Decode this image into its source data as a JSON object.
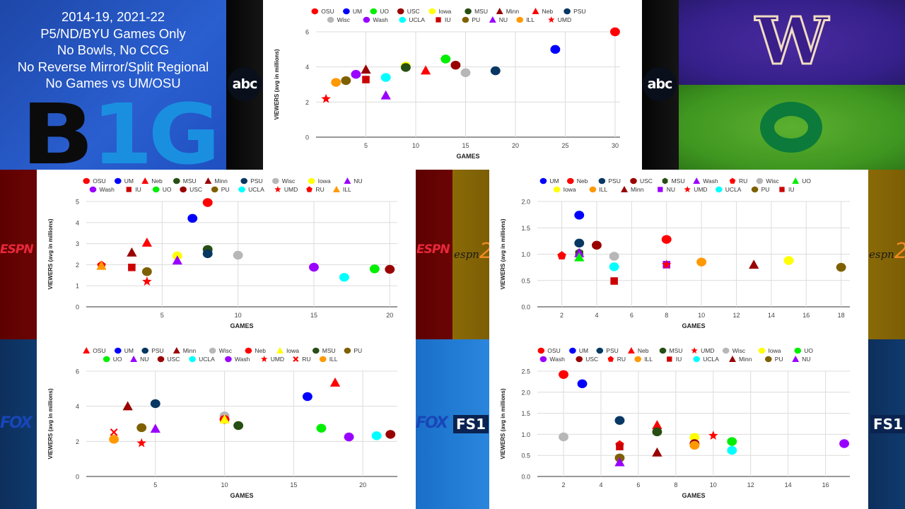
{
  "info_panel": {
    "lines": [
      "2014-19, 2021-22",
      "P5/ND/BYU Games Only",
      "No Bowls, No CCG",
      "No Reverse Mirror/Split Regional",
      "No Games vs UM/OSU"
    ],
    "logo_b": "B",
    "logo_1g": "1G"
  },
  "networks": {
    "abc": "abc",
    "espn": "ESPN",
    "espn2_text": "espn",
    "espn2_num": "2",
    "fox": "FOX",
    "fs1": "FS1"
  },
  "team_logos": {
    "washington": "W",
    "oregon": "O"
  },
  "colors": {
    "OSU": "#ff0000",
    "UM": "#0000ff",
    "UO": "#00ee00",
    "USC": "#990000",
    "Iowa": "#ffff00",
    "MSU": "#274e13",
    "Minn": "#990000",
    "Neb": "#ff0000",
    "PSU": "#073763",
    "Wisc": "#b7b7b7",
    "Wash": "#9900ff",
    "UCLA": "#00ffff",
    "IU": "#cc0000",
    "PU": "#7f6000",
    "NU": "#9900ff",
    "ILL": "#ff9900",
    "UMD": "#ff0000",
    "RU": "#ff0000"
  },
  "chart_data": [
    {
      "id": "abc",
      "network": "ABC",
      "type": "scatter",
      "title": "",
      "xlabel": "GAMES",
      "ylabel": "VIEWERS (avg in millions)",
      "xlim": [
        0,
        30.5
      ],
      "ylim": [
        0,
        6
      ],
      "xticks": [
        5,
        10,
        15,
        20,
        25,
        30
      ],
      "yticks": [
        0,
        2,
        4,
        6
      ],
      "ytick_labels": [
        "0",
        "2",
        "4",
        "6"
      ],
      "grid": true,
      "legend_position": "top",
      "legend_rows": [
        [
          "OSU",
          "UM",
          "UO",
          "USC",
          "Iowa",
          "MSU",
          "Minn",
          "Neb",
          "PSU"
        ],
        [
          "Wisc",
          "Wash",
          "UCLA",
          "IU",
          "PU",
          "NU",
          "ILL",
          "UMD"
        ]
      ],
      "series": [
        {
          "name": "OSU",
          "marker": "circle",
          "x": 30,
          "y": 6.0
        },
        {
          "name": "UM",
          "marker": "circle",
          "x": 24,
          "y": 5.0
        },
        {
          "name": "UO",
          "marker": "circle",
          "x": 13,
          "y": 4.45
        },
        {
          "name": "USC",
          "marker": "circle",
          "x": 14,
          "y": 4.1
        },
        {
          "name": "Iowa",
          "marker": "circle",
          "x": 9,
          "y": 4.05
        },
        {
          "name": "MSU",
          "marker": "circle",
          "x": 9,
          "y": 3.97
        },
        {
          "name": "Minn",
          "marker": "triangle",
          "x": 5,
          "y": 3.85
        },
        {
          "name": "Neb",
          "marker": "triangle",
          "x": 11,
          "y": 3.8
        },
        {
          "name": "PSU",
          "marker": "circle",
          "x": 18,
          "y": 3.78
        },
        {
          "name": "Wisc",
          "marker": "circle",
          "x": 15,
          "y": 3.67
        },
        {
          "name": "Wash",
          "marker": "circle",
          "x": 4,
          "y": 3.58
        },
        {
          "name": "UCLA",
          "marker": "circle",
          "x": 7,
          "y": 3.4
        },
        {
          "name": "IU",
          "marker": "square",
          "x": 5,
          "y": 3.28
        },
        {
          "name": "PU",
          "marker": "circle",
          "x": 3,
          "y": 3.22
        },
        {
          "name": "NU",
          "marker": "triangle",
          "x": 7,
          "y": 2.38
        },
        {
          "name": "ILL",
          "marker": "circle",
          "x": 2,
          "y": 3.12
        },
        {
          "name": "UMD",
          "marker": "star",
          "x": 1,
          "y": 2.18
        }
      ]
    },
    {
      "id": "espn",
      "network": "ESPN",
      "type": "scatter",
      "title": "",
      "xlabel": "GAMES",
      "ylabel": "VIEWERS (avg in millions)",
      "xlim": [
        0,
        20.5
      ],
      "ylim": [
        0,
        5
      ],
      "xticks": [
        5,
        10,
        15,
        20
      ],
      "yticks": [
        0,
        1,
        2,
        3,
        4,
        5
      ],
      "ytick_labels": [
        "0",
        "1",
        "2",
        "3",
        "4",
        "5"
      ],
      "grid": true,
      "legend_position": "top",
      "legend_rows": [
        [
          "OSU",
          "UM",
          "Neb",
          "MSU",
          "Minn",
          "PSU",
          "Wisc",
          "Iowa",
          "NU"
        ],
        [
          "Wash",
          "IU",
          "UO",
          "USC",
          "PU",
          "UCLA",
          "UMD",
          "RU",
          "ILL"
        ]
      ],
      "series": [
        {
          "name": "OSU",
          "marker": "circle",
          "x": 8,
          "y": 4.95
        },
        {
          "name": "UM",
          "marker": "circle",
          "x": 7,
          "y": 4.2
        },
        {
          "name": "Neb",
          "marker": "triangle",
          "x": 4,
          "y": 3.05
        },
        {
          "name": "MSU",
          "marker": "circle",
          "x": 8,
          "y": 2.72
        },
        {
          "name": "Minn",
          "marker": "triangle",
          "x": 3,
          "y": 2.58
        },
        {
          "name": "PSU",
          "marker": "circle",
          "x": 8,
          "y": 2.52
        },
        {
          "name": "Wisc",
          "marker": "circle",
          "x": 10,
          "y": 2.45
        },
        {
          "name": "Iowa",
          "marker": "circle",
          "x": 6,
          "y": 2.42
        },
        {
          "name": "NU",
          "marker": "triangle",
          "x": 6,
          "y": 2.2
        },
        {
          "name": "Wash",
          "marker": "circle",
          "x": 15,
          "y": 1.88
        },
        {
          "name": "IU",
          "marker": "square",
          "x": 3,
          "y": 1.87
        },
        {
          "name": "UO",
          "marker": "circle",
          "x": 19,
          "y": 1.8
        },
        {
          "name": "USC",
          "marker": "circle",
          "x": 20,
          "y": 1.78
        },
        {
          "name": "PU",
          "marker": "circle",
          "x": 4,
          "y": 1.67
        },
        {
          "name": "UCLA",
          "marker": "circle",
          "x": 17,
          "y": 1.4
        },
        {
          "name": "UMD",
          "marker": "star",
          "x": 4,
          "y": 1.2
        },
        {
          "name": "RU",
          "marker": "pentagon",
          "x": 1,
          "y": 1.97
        },
        {
          "name": "ILL",
          "marker": "triangle",
          "x": 1,
          "y": 1.95
        }
      ]
    },
    {
      "id": "espn2",
      "network": "ESPN2",
      "type": "scatter",
      "title": "",
      "xlabel": "GAMES",
      "ylabel": "VIEWERS (avg in millions)",
      "xlim": [
        0.6,
        18.5
      ],
      "ylim": [
        0,
        2.0
      ],
      "xticks": [
        2,
        4,
        6,
        8,
        10,
        12,
        14,
        16,
        18
      ],
      "yticks": [
        0,
        0.5,
        1.0,
        1.5,
        2.0
      ],
      "ytick_labels": [
        "0.0",
        "0.5",
        "1.0",
        "1.5",
        "2.0"
      ],
      "grid": true,
      "legend_position": "top",
      "legend_rows": [
        [
          "UM",
          "Neb",
          "PSU",
          "USC",
          "MSU",
          "Wash",
          "RU",
          "Wisc",
          "UO"
        ],
        [
          "Iowa",
          "ILL",
          "Minn",
          "NU",
          "UMD",
          "UCLA",
          "PU",
          "IU"
        ]
      ],
      "series": [
        {
          "name": "UM",
          "marker": "circle",
          "x": 3,
          "y": 1.74
        },
        {
          "name": "Neb",
          "marker": "circle",
          "x": 8,
          "y": 1.28
        },
        {
          "name": "PSU",
          "marker": "circle",
          "x": 3,
          "y": 1.21
        },
        {
          "name": "USC",
          "marker": "circle",
          "x": 4,
          "y": 1.17
        },
        {
          "name": "MSU",
          "marker": "hexagon",
          "x": 3,
          "y": 1.02
        },
        {
          "name": "Wash",
          "marker": "triangle",
          "x": 3,
          "y": 1.02
        },
        {
          "name": "RU",
          "marker": "pentagon",
          "x": 2,
          "y": 0.97
        },
        {
          "name": "Wisc",
          "marker": "circle",
          "x": 5,
          "y": 0.96
        },
        {
          "name": "UO",
          "marker": "triangle",
          "x": 3,
          "y": 0.94
        },
        {
          "name": "Iowa",
          "marker": "circle",
          "x": 15,
          "y": 0.88
        },
        {
          "name": "ILL",
          "marker": "circle",
          "x": 10,
          "y": 0.85
        },
        {
          "name": "Minn",
          "marker": "triangle",
          "x": 13,
          "y": 0.8
        },
        {
          "name": "NU",
          "marker": "square",
          "x": 8,
          "y": 0.8
        },
        {
          "name": "UMD",
          "marker": "star",
          "x": 8,
          "y": 0.8
        },
        {
          "name": "UCLA",
          "marker": "circle",
          "x": 5,
          "y": 0.76
        },
        {
          "name": "PU",
          "marker": "circle",
          "x": 18,
          "y": 0.75
        },
        {
          "name": "IU",
          "marker": "square",
          "x": 5,
          "y": 0.49
        }
      ]
    },
    {
      "id": "fox",
      "network": "FOX",
      "type": "scatter",
      "title": "",
      "xlabel": "GAMES",
      "ylabel": "VIEWERS (avg in millions)",
      "xlim": [
        0,
        22.5
      ],
      "ylim": [
        0,
        6
      ],
      "xticks": [
        5,
        10,
        15,
        20
      ],
      "yticks": [
        0,
        2,
        4,
        6
      ],
      "ytick_labels": [
        "0",
        "2",
        "4",
        "6"
      ],
      "grid": true,
      "legend_position": "top",
      "legend_rows": [
        [
          "OSU",
          "UM",
          "PSU",
          "Minn",
          "Wisc",
          "Neb",
          "Iowa",
          "MSU",
          "PU"
        ],
        [
          "UO",
          "NU",
          "USC",
          "UCLA",
          "Wash",
          "UMD",
          "RU",
          "ILL"
        ]
      ],
      "series": [
        {
          "name": "OSU",
          "marker": "triangle",
          "x": 18,
          "y": 5.35
        },
        {
          "name": "UM",
          "marker": "circle",
          "x": 16,
          "y": 4.55
        },
        {
          "name": "PSU",
          "marker": "circle",
          "x": 5,
          "y": 4.15
        },
        {
          "name": "Minn",
          "marker": "triangle",
          "x": 3,
          "y": 4.0
        },
        {
          "name": "Wisc",
          "marker": "circle",
          "x": 10,
          "y": 3.45
        },
        {
          "name": "Neb",
          "marker": "circle",
          "x": 10,
          "y": 3.25
        },
        {
          "name": "Iowa",
          "marker": "triangle",
          "x": 10,
          "y": 3.25
        },
        {
          "name": "MSU",
          "marker": "circle",
          "x": 11,
          "y": 2.9
        },
        {
          "name": "PU",
          "marker": "circle",
          "x": 4,
          "y": 2.78
        },
        {
          "name": "UO",
          "marker": "circle",
          "x": 17,
          "y": 2.75
        },
        {
          "name": "NU",
          "marker": "triangle",
          "x": 5,
          "y": 2.72
        },
        {
          "name": "USC",
          "marker": "circle",
          "x": 22,
          "y": 2.4
        },
        {
          "name": "UCLA",
          "marker": "circle",
          "x": 21,
          "y": 2.32
        },
        {
          "name": "Wash",
          "marker": "circle",
          "x": 19,
          "y": 2.25
        },
        {
          "name": "UMD",
          "marker": "star",
          "x": 4,
          "y": 1.9
        },
        {
          "name": "RU",
          "marker": "x",
          "x": 2,
          "y": 2.52
        },
        {
          "name": "ILL",
          "marker": "circle",
          "x": 2,
          "y": 2.12
        }
      ]
    },
    {
      "id": "fs1",
      "network": "FS1",
      "type": "scatter",
      "title": "",
      "xlabel": "GAMES",
      "ylabel": "VIEWERS (avg in millions)",
      "xlim": [
        0.6,
        17.3
      ],
      "ylim": [
        0,
        2.5
      ],
      "xticks": [
        2,
        4,
        6,
        8,
        10,
        12,
        14,
        16
      ],
      "yticks": [
        0,
        0.5,
        1.0,
        1.5,
        2.0,
        2.5
      ],
      "ytick_labels": [
        "0.0",
        "0.5",
        "1.0",
        "1.5",
        "2.0",
        "2.5"
      ],
      "grid": true,
      "legend_position": "top",
      "legend_rows": [
        [
          "OSU",
          "UM",
          "PSU",
          "Neb",
          "MSU",
          "UMD",
          "Wisc",
          "Iowa",
          "UO"
        ],
        [
          "Wash",
          "USC",
          "RU",
          "ILL",
          "IU",
          "UCLA",
          "Minn",
          "PU",
          "NU"
        ]
      ],
      "series": [
        {
          "name": "OSU",
          "marker": "circle",
          "x": 2,
          "y": 2.42
        },
        {
          "name": "UM",
          "marker": "circle",
          "x": 3,
          "y": 2.2
        },
        {
          "name": "PSU",
          "marker": "circle",
          "x": 5,
          "y": 1.33
        },
        {
          "name": "Neb",
          "marker": "triangle",
          "x": 7,
          "y": 1.22
        },
        {
          "name": "MSU",
          "marker": "circle",
          "x": 7,
          "y": 1.06
        },
        {
          "name": "UMD",
          "marker": "star",
          "x": 10,
          "y": 0.97
        },
        {
          "name": "Wisc",
          "marker": "circle",
          "x": 2,
          "y": 0.94
        },
        {
          "name": "Iowa",
          "marker": "circle",
          "x": 9,
          "y": 0.93
        },
        {
          "name": "UO",
          "marker": "circle",
          "x": 11,
          "y": 0.83
        },
        {
          "name": "Wash",
          "marker": "circle",
          "x": 17,
          "y": 0.78
        },
        {
          "name": "USC",
          "marker": "circle",
          "x": 9,
          "y": 0.78
        },
        {
          "name": "RU",
          "marker": "pentagon",
          "x": 5,
          "y": 0.75
        },
        {
          "name": "ILL",
          "marker": "circle",
          "x": 9,
          "y": 0.74
        },
        {
          "name": "IU",
          "marker": "square",
          "x": 5,
          "y": 0.71
        },
        {
          "name": "UCLA",
          "marker": "circle",
          "x": 11,
          "y": 0.62
        },
        {
          "name": "Minn",
          "marker": "triangle",
          "x": 7,
          "y": 0.57
        },
        {
          "name": "PU",
          "marker": "circle",
          "x": 5,
          "y": 0.44
        },
        {
          "name": "NU",
          "marker": "triangle",
          "x": 5,
          "y": 0.34
        }
      ]
    }
  ]
}
